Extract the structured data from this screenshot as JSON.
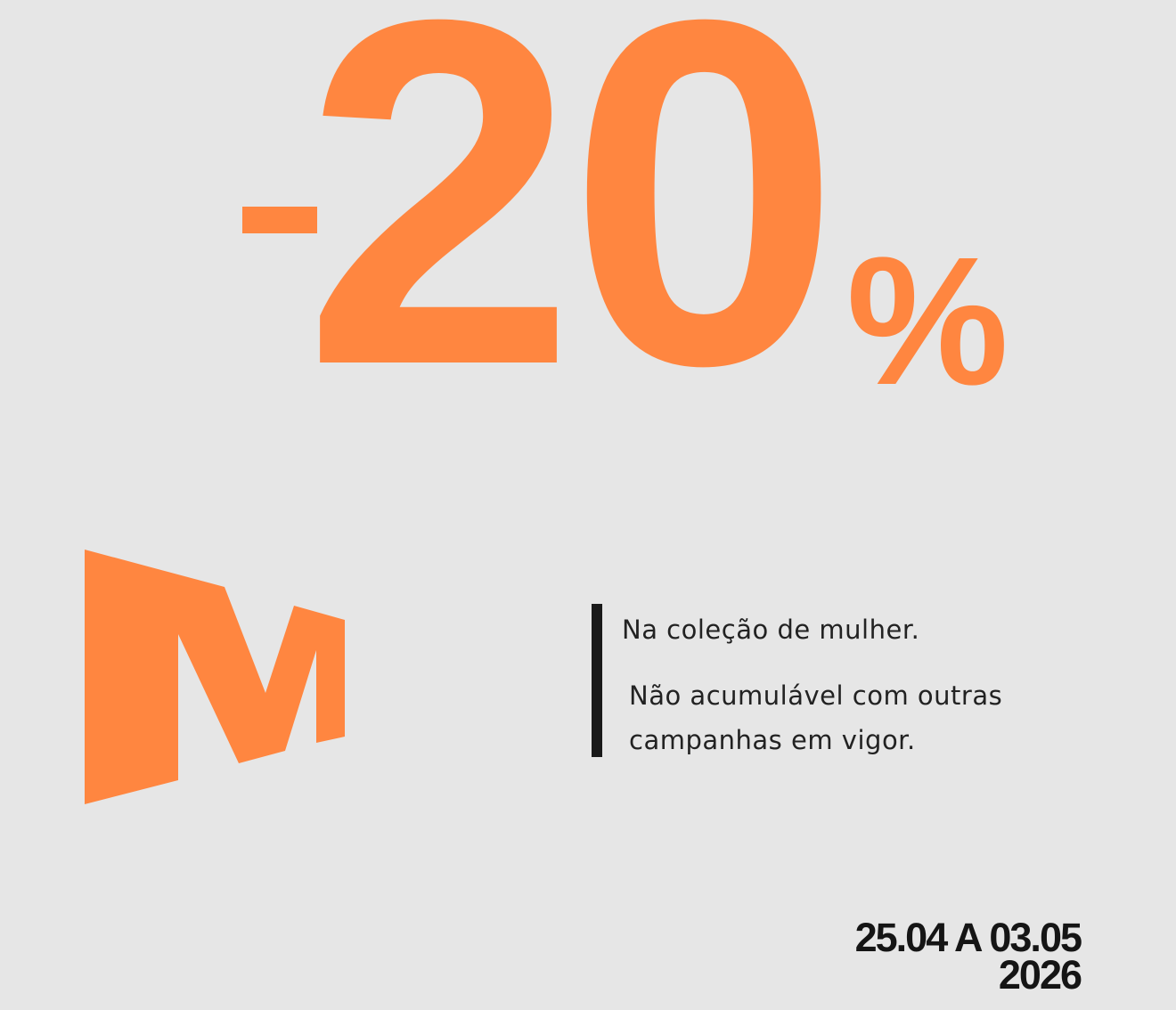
{
  "discount": {
    "value": "20",
    "percent": "%"
  },
  "brand": {
    "logo_letter": "M",
    "color": "#ff8640"
  },
  "info": {
    "line1": "Na coleção de mulher.",
    "line2a": "Não acumulável com outras",
    "line2b": "campanhas em vigor."
  },
  "dates": {
    "range": "25.04 A 03.05",
    "year": "2026"
  }
}
